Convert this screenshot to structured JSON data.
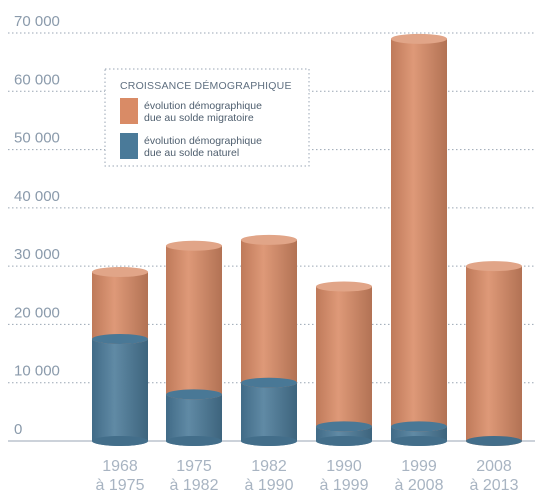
{
  "chart_data": {
    "type": "bar",
    "stacked": true,
    "categories": [
      [
        "1968",
        "à 1975"
      ],
      [
        "1975",
        "à 1982"
      ],
      [
        "1982",
        "à 1990"
      ],
      [
        "1990",
        "à 1999"
      ],
      [
        "1999",
        "à 2008"
      ],
      [
        "2008",
        "à 2013"
      ]
    ],
    "series": [
      {
        "name": "évolution démographique due au solde naturel",
        "legend_lines": [
          "évolution démographique",
          "due au solde naturel"
        ],
        "color": "#4a7a99",
        "values": [
          17500,
          8000,
          10000,
          2500,
          2500,
          0
        ]
      },
      {
        "name": "évolution démographique due au solde migratoire",
        "legend_lines": [
          "évolution démographique",
          "due au solde migratoire"
        ],
        "color": "#d98b66",
        "values": [
          11500,
          25500,
          24500,
          24000,
          66500,
          30000
        ]
      }
    ],
    "yticks": [
      "0",
      "10 000",
      "20 000",
      "30 000",
      "40 000",
      "50 000",
      "60 000",
      "70 000"
    ],
    "ylim": [
      0,
      70000
    ],
    "grid": "dotted horizontal",
    "legend": {
      "title": "CROISSANCE DÉMOGRAPHIQUE",
      "position": "top-left"
    }
  }
}
